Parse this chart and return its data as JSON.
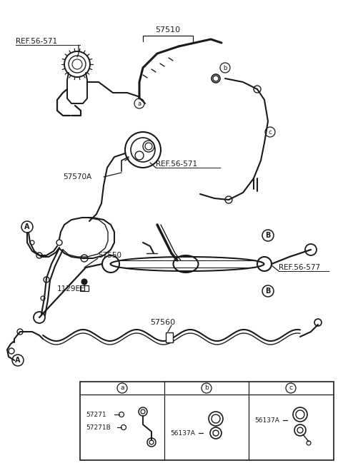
{
  "bg_color": "#ffffff",
  "line_color": "#1a1a1a",
  "fig_width": 4.8,
  "fig_height": 6.56,
  "dpi": 100,
  "labels": {
    "ref56_571_top": "REF.56-571",
    "ref56_571_mid": "REF.56-571",
    "ref56_577": "REF.56-577",
    "part57510": "57510",
    "part57570A": "57570A",
    "part57550": "57550",
    "part1129EE": "1129EE",
    "part57560": "57560",
    "p57271": "57271",
    "p57271B": "57271B",
    "p56137A_b": "56137A",
    "p56137A_c": "56137A"
  }
}
